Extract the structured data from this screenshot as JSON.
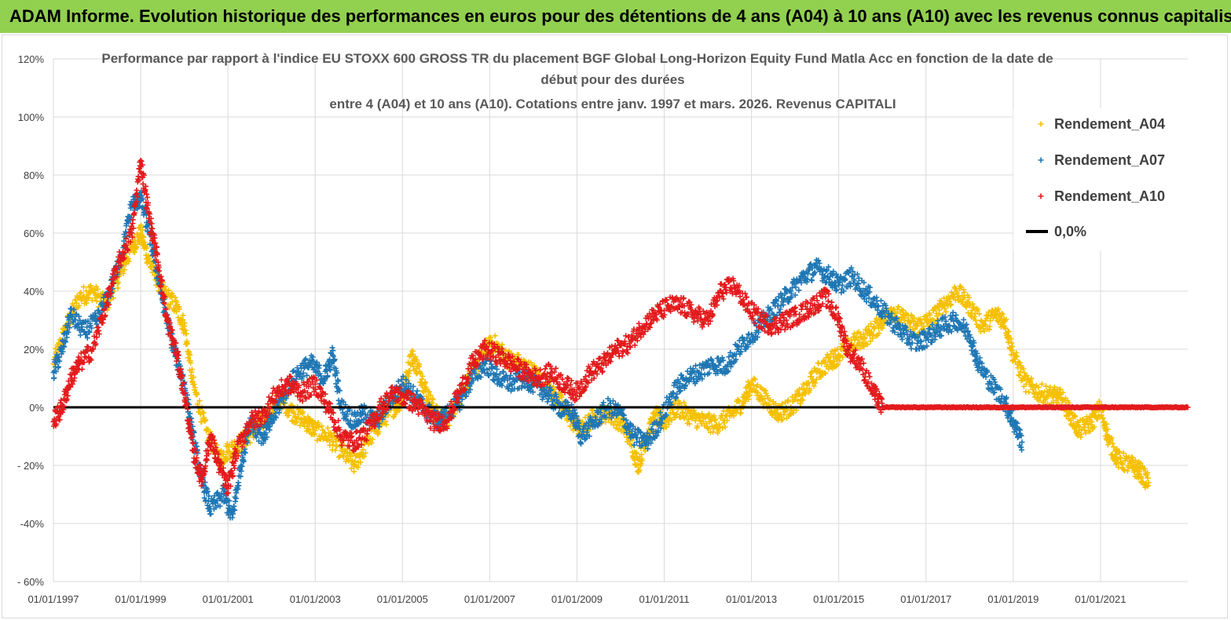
{
  "header": {
    "banner_title": "ADAM Informe. Evolution historique des performances en euros pour des détentions de 4 ans (A04) à 10 ans (A10) avec les revenus connus capitalisés"
  },
  "chart_data": {
    "type": "scatter",
    "title_lines": [
      "Performance par rapport à l'indice EU STOXX 600 GROSS TR  du placement BGF Global Long-Horizon Equity Fund Matla Acc en fonction de la date de",
      "début pour des durées",
      "entre 4 (A04) et 10 ans (A10). Cotations entre janv. 1997 et mars. 2026. Revenus CAPITALI"
    ],
    "xlabel": "",
    "ylabel": "",
    "x_range": [
      1997.0,
      2023.0
    ],
    "x_ticks": [
      1997,
      1999,
      2001,
      2003,
      2005,
      2007,
      2009,
      2011,
      2013,
      2015,
      2017,
      2019,
      2021
    ],
    "x_tick_labels": [
      "01/01/1997",
      "01/01/1999",
      "01/01/2001",
      "01/01/2003",
      "01/01/2005",
      "01/01/2007",
      "01/01/2009",
      "01/01/2011",
      "01/01/2013",
      "01/01/2015",
      "01/01/2017",
      "01/01/2019",
      "01/01/2021"
    ],
    "ylim": [
      -60,
      120
    ],
    "y_ticks": [
      -60,
      -40,
      -20,
      0,
      20,
      40,
      60,
      80,
      100,
      120
    ],
    "y_tick_labels": [
      "- 60%",
      "-40%",
      "- 20%",
      "0%",
      "20%",
      "40%",
      "60%",
      "80%",
      "100%",
      "120%"
    ],
    "grid": true,
    "legend_position": "top-right",
    "series": [
      {
        "name": "Rendement_A04",
        "color": "#f5c000",
        "marker": "+",
        "points": [
          [
            1997.0,
            15
          ],
          [
            1997.3,
            28
          ],
          [
            1997.6,
            38
          ],
          [
            1997.9,
            40
          ],
          [
            1998.2,
            35
          ],
          [
            1998.5,
            45
          ],
          [
            1998.8,
            55
          ],
          [
            1999.0,
            60
          ],
          [
            1999.2,
            50
          ],
          [
            1999.5,
            40
          ],
          [
            1999.8,
            35
          ],
          [
            2000.0,
            28
          ],
          [
            2000.2,
            8
          ],
          [
            2000.5,
            -8
          ],
          [
            2000.8,
            -18
          ],
          [
            2001.0,
            -15
          ],
          [
            2001.3,
            -12
          ],
          [
            2001.6,
            -8
          ],
          [
            2001.9,
            -3
          ],
          [
            2002.2,
            3
          ],
          [
            2002.5,
            -2
          ],
          [
            2002.8,
            -5
          ],
          [
            2003.0,
            -8
          ],
          [
            2003.3,
            -10
          ],
          [
            2003.6,
            -15
          ],
          [
            2003.9,
            -20
          ],
          [
            2004.2,
            -12
          ],
          [
            2004.5,
            -5
          ],
          [
            2004.8,
            0
          ],
          [
            2005.0,
            3
          ],
          [
            2005.2,
            18
          ],
          [
            2005.4,
            12
          ],
          [
            2005.6,
            3
          ],
          [
            2005.8,
            -3
          ],
          [
            2006.0,
            -5
          ],
          [
            2006.3,
            3
          ],
          [
            2006.6,
            12
          ],
          [
            2006.9,
            20
          ],
          [
            2007.1,
            22
          ],
          [
            2007.4,
            17
          ],
          [
            2007.7,
            15
          ],
          [
            2008.0,
            12
          ],
          [
            2008.3,
            8
          ],
          [
            2008.6,
            2
          ],
          [
            2008.9,
            -5
          ],
          [
            2009.1,
            -8
          ],
          [
            2009.4,
            -3
          ],
          [
            2009.7,
            -2
          ],
          [
            2010.0,
            -5
          ],
          [
            2010.2,
            -10
          ],
          [
            2010.4,
            -20
          ],
          [
            2010.6,
            -10
          ],
          [
            2010.8,
            -3
          ],
          [
            2011.0,
            -5
          ],
          [
            2011.3,
            0
          ],
          [
            2011.6,
            -3
          ],
          [
            2011.9,
            -5
          ],
          [
            2012.2,
            -6
          ],
          [
            2012.5,
            -3
          ],
          [
            2012.8,
            2
          ],
          [
            2013.0,
            8
          ],
          [
            2013.3,
            3
          ],
          [
            2013.6,
            -2
          ],
          [
            2013.9,
            0
          ],
          [
            2014.2,
            5
          ],
          [
            2014.5,
            12
          ],
          [
            2014.8,
            16
          ],
          [
            2015.0,
            18
          ],
          [
            2015.3,
            22
          ],
          [
            2015.6,
            24
          ],
          [
            2015.9,
            28
          ],
          [
            2016.2,
            34
          ],
          [
            2016.5,
            30
          ],
          [
            2016.8,
            28
          ],
          [
            2017.1,
            30
          ],
          [
            2017.4,
            35
          ],
          [
            2017.7,
            40
          ],
          [
            2018.0,
            35
          ],
          [
            2018.3,
            28
          ],
          [
            2018.6,
            32
          ],
          [
            2018.8,
            30
          ],
          [
            2019.0,
            18
          ],
          [
            2019.3,
            8
          ],
          [
            2019.6,
            5
          ],
          [
            2019.9,
            4
          ],
          [
            2020.1,
            3
          ],
          [
            2020.3,
            -2
          ],
          [
            2020.5,
            -8
          ],
          [
            2020.8,
            -5
          ],
          [
            2021.0,
            0
          ],
          [
            2021.2,
            -12
          ],
          [
            2021.4,
            -18
          ],
          [
            2021.7,
            -20
          ],
          [
            2021.9,
            -22
          ],
          [
            2022.1,
            -26
          ]
        ]
      },
      {
        "name": "Rendement_A07",
        "color": "#1f77b4",
        "marker": "+",
        "points": [
          [
            1997.0,
            12
          ],
          [
            1997.2,
            20
          ],
          [
            1997.4,
            32
          ],
          [
            1997.7,
            26
          ],
          [
            1998.0,
            30
          ],
          [
            1998.3,
            40
          ],
          [
            1998.6,
            55
          ],
          [
            1998.8,
            70
          ],
          [
            1999.0,
            72
          ],
          [
            1999.2,
            60
          ],
          [
            1999.4,
            45
          ],
          [
            1999.6,
            30
          ],
          [
            1999.8,
            18
          ],
          [
            2000.0,
            8
          ],
          [
            2000.2,
            -10
          ],
          [
            2000.4,
            -25
          ],
          [
            2000.6,
            -35
          ],
          [
            2000.9,
            -30
          ],
          [
            2001.1,
            -38
          ],
          [
            2001.3,
            -20
          ],
          [
            2001.5,
            -5
          ],
          [
            2001.8,
            -10
          ],
          [
            2002.0,
            -5
          ],
          [
            2002.3,
            5
          ],
          [
            2002.6,
            12
          ],
          [
            2002.9,
            15
          ],
          [
            2003.2,
            10
          ],
          [
            2003.4,
            18
          ],
          [
            2003.6,
            0
          ],
          [
            2003.9,
            -5
          ],
          [
            2004.1,
            -2
          ],
          [
            2004.4,
            -5
          ],
          [
            2004.7,
            2
          ],
          [
            2005.0,
            8
          ],
          [
            2005.2,
            5
          ],
          [
            2005.5,
            0
          ],
          [
            2005.8,
            -5
          ],
          [
            2006.0,
            -3
          ],
          [
            2006.3,
            2
          ],
          [
            2006.6,
            10
          ],
          [
            2006.9,
            15
          ],
          [
            2007.2,
            10
          ],
          [
            2007.5,
            8
          ],
          [
            2007.8,
            10
          ],
          [
            2008.0,
            8
          ],
          [
            2008.3,
            5
          ],
          [
            2008.6,
            0
          ],
          [
            2008.9,
            -2
          ],
          [
            2009.1,
            -10
          ],
          [
            2009.4,
            -5
          ],
          [
            2009.7,
            0
          ],
          [
            2010.0,
            -2
          ],
          [
            2010.3,
            -10
          ],
          [
            2010.6,
            -12
          ],
          [
            2010.9,
            -5
          ],
          [
            2011.2,
            5
          ],
          [
            2011.5,
            10
          ],
          [
            2011.8,
            12
          ],
          [
            2012.1,
            15
          ],
          [
            2012.4,
            14
          ],
          [
            2012.7,
            20
          ],
          [
            2013.0,
            25
          ],
          [
            2013.3,
            30
          ],
          [
            2013.6,
            35
          ],
          [
            2013.9,
            40
          ],
          [
            2014.2,
            45
          ],
          [
            2014.5,
            48
          ],
          [
            2014.8,
            45
          ],
          [
            2015.0,
            42
          ],
          [
            2015.3,
            45
          ],
          [
            2015.6,
            40
          ],
          [
            2015.9,
            35
          ],
          [
            2016.2,
            30
          ],
          [
            2016.5,
            25
          ],
          [
            2016.8,
            22
          ],
          [
            2017.1,
            25
          ],
          [
            2017.4,
            28
          ],
          [
            2017.7,
            30
          ],
          [
            2018.0,
            25
          ],
          [
            2018.2,
            15
          ],
          [
            2018.5,
            8
          ],
          [
            2018.8,
            2
          ],
          [
            2019.0,
            -5
          ],
          [
            2019.2,
            -12
          ]
        ]
      },
      {
        "name": "Rendement_A10",
        "color": "#e31a1c",
        "marker": "+",
        "points": [
          [
            1997.0,
            -5
          ],
          [
            1997.2,
            0
          ],
          [
            1997.4,
            10
          ],
          [
            1997.6,
            15
          ],
          [
            1997.9,
            20
          ],
          [
            1998.2,
            35
          ],
          [
            1998.5,
            50
          ],
          [
            1998.8,
            60
          ],
          [
            1999.0,
            85
          ],
          [
            1999.2,
            65
          ],
          [
            1999.4,
            50
          ],
          [
            1999.6,
            30
          ],
          [
            1999.8,
            20
          ],
          [
            2000.0,
            5
          ],
          [
            2000.2,
            -15
          ],
          [
            2000.4,
            -25
          ],
          [
            2000.6,
            -10
          ],
          [
            2000.8,
            -20
          ],
          [
            2001.0,
            -28
          ],
          [
            2001.2,
            -15
          ],
          [
            2001.5,
            -5
          ],
          [
            2001.8,
            -3
          ],
          [
            2002.1,
            5
          ],
          [
            2002.4,
            8
          ],
          [
            2002.7,
            5
          ],
          [
            2003.0,
            8
          ],
          [
            2003.3,
            0
          ],
          [
            2003.6,
            -10
          ],
          [
            2003.9,
            -12
          ],
          [
            2004.2,
            -8
          ],
          [
            2004.5,
            0
          ],
          [
            2004.8,
            5
          ],
          [
            2005.1,
            3
          ],
          [
            2005.4,
            0
          ],
          [
            2005.7,
            -5
          ],
          [
            2006.0,
            -5
          ],
          [
            2006.3,
            5
          ],
          [
            2006.6,
            15
          ],
          [
            2006.9,
            20
          ],
          [
            2007.2,
            18
          ],
          [
            2007.5,
            15
          ],
          [
            2007.8,
            12
          ],
          [
            2008.1,
            10
          ],
          [
            2008.4,
            12
          ],
          [
            2008.7,
            8
          ],
          [
            2009.0,
            5
          ],
          [
            2009.3,
            12
          ],
          [
            2009.6,
            15
          ],
          [
            2009.9,
            20
          ],
          [
            2010.2,
            22
          ],
          [
            2010.5,
            28
          ],
          [
            2010.8,
            32
          ],
          [
            2011.1,
            35
          ],
          [
            2011.4,
            35
          ],
          [
            2011.7,
            32
          ],
          [
            2012.0,
            30
          ],
          [
            2012.3,
            40
          ],
          [
            2012.6,
            42
          ],
          [
            2012.9,
            35
          ],
          [
            2013.2,
            30
          ],
          [
            2013.5,
            28
          ],
          [
            2013.8,
            30
          ],
          [
            2014.1,
            32
          ],
          [
            2014.4,
            35
          ],
          [
            2014.7,
            38
          ],
          [
            2015.0,
            30
          ],
          [
            2015.2,
            20
          ],
          [
            2015.5,
            15
          ],
          [
            2015.8,
            5
          ],
          [
            2016.0,
            0
          ],
          [
            2016.5,
            0
          ],
          [
            2017.0,
            0
          ],
          [
            2017.5,
            0
          ],
          [
            2018.0,
            0
          ],
          [
            2018.5,
            0
          ],
          [
            2019.0,
            0
          ],
          [
            2019.5,
            0
          ],
          [
            2020.0,
            0
          ],
          [
            2020.5,
            0
          ],
          [
            2021.0,
            0
          ],
          [
            2021.5,
            0
          ],
          [
            2022.0,
            0
          ],
          [
            2022.5,
            0
          ],
          [
            2023.0,
            0
          ]
        ]
      }
    ],
    "reference_line": {
      "name": "0,0%",
      "value": 0,
      "color": "#000000"
    }
  }
}
